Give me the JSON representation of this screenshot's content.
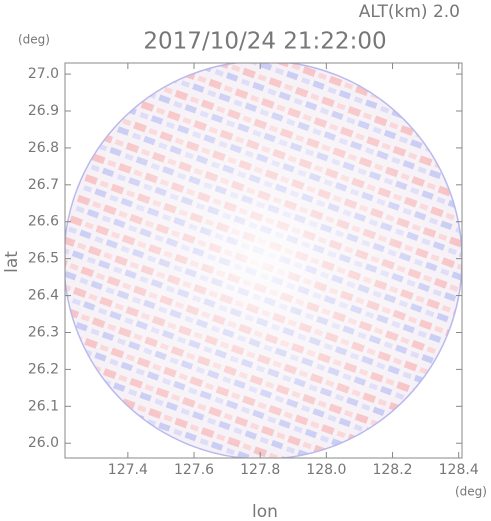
{
  "chart_data": {
    "type": "radar-field",
    "title": "2017/10/24 21:22:00",
    "subtitle": "ALT(km) 2.0",
    "x_label": "lon",
    "y_label": "lat",
    "x_unit": "(deg)",
    "y_unit": "(deg)",
    "xlim": [
      127.21,
      128.41
    ],
    "xticks": [
      127.4,
      127.6,
      127.8,
      {
        "value": 128.0,
        "label": "128.0"
      },
      128.2,
      128.4
    ],
    "ylim": [
      25.96,
      27.03
    ],
    "yticks": [
      {
        "value": 26.0,
        "label": "26.0"
      },
      26.1,
      26.2,
      26.3,
      26.4,
      26.5,
      26.6,
      26.7,
      26.8,
      26.9,
      {
        "value": 27.0,
        "label": "27.0"
      }
    ]
  }
}
